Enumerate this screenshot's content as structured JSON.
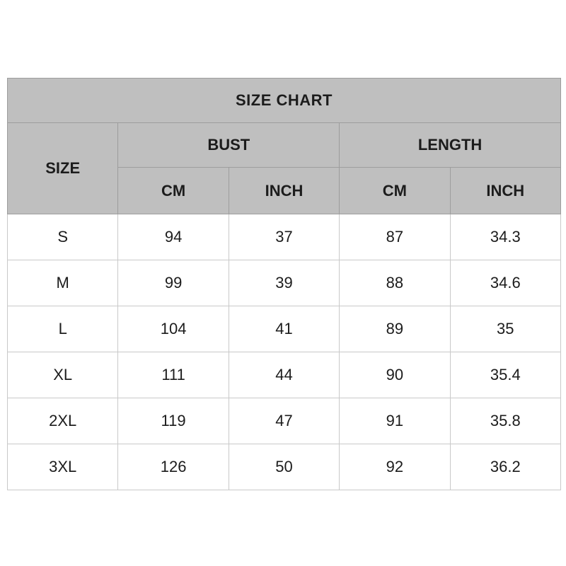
{
  "chart_data": {
    "type": "table",
    "title": "SIZE CHART",
    "header": {
      "size": "SIZE",
      "groups": [
        {
          "label": "BUST",
          "sub": [
            "CM",
            "INCH"
          ]
        },
        {
          "label": "LENGTH",
          "sub": [
            "CM",
            "INCH"
          ]
        }
      ]
    },
    "columns": [
      "SIZE",
      "BUST CM",
      "BUST INCH",
      "LENGTH CM",
      "LENGTH INCH"
    ],
    "rows": [
      {
        "size": "S",
        "bust_cm": "94",
        "bust_inch": "37",
        "length_cm": "87",
        "length_inch": "34.3"
      },
      {
        "size": "M",
        "bust_cm": "99",
        "bust_inch": "39",
        "length_cm": "88",
        "length_inch": "34.6"
      },
      {
        "size": "L",
        "bust_cm": "104",
        "bust_inch": "41",
        "length_cm": "89",
        "length_inch": "35"
      },
      {
        "size": "XL",
        "bust_cm": "111",
        "bust_inch": "44",
        "length_cm": "90",
        "length_inch": "35.4"
      },
      {
        "size": "2XL",
        "bust_cm": "119",
        "bust_inch": "47",
        "length_cm": "91",
        "length_inch": "35.8"
      },
      {
        "size": "3XL",
        "bust_cm": "126",
        "bust_inch": "50",
        "length_cm": "92",
        "length_inch": "36.2"
      }
    ],
    "colors": {
      "header_background": "#bfbfbf",
      "header_border": "#9d9d9d",
      "body_border": "#c9c9c9",
      "body_background": "#ffffff",
      "text": "#1c1c1c"
    },
    "layout": {
      "grid": true,
      "title_position": "top-merged-row"
    }
  }
}
